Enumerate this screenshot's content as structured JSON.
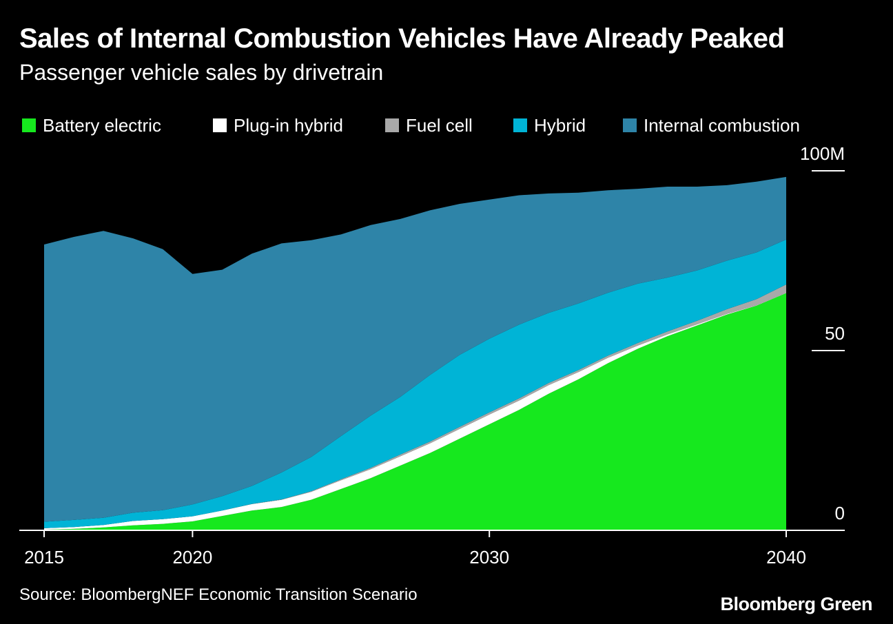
{
  "header": {
    "title": "Sales of Internal Combustion Vehicles Have Already Peaked",
    "subtitle": "Passenger vehicle sales by drivetrain"
  },
  "footer": {
    "source": "Source: BloombergNEF Economic Transition Scenario",
    "brand": "Bloomberg Green"
  },
  "chart_data": {
    "type": "area",
    "stacked": true,
    "title": "Sales of Internal Combustion Vehicles Have Already Peaked",
    "subtitle": "Passenger vehicle sales by drivetrain",
    "x": [
      2015,
      2016,
      2017,
      2018,
      2019,
      2020,
      2021,
      2022,
      2023,
      2024,
      2025,
      2026,
      2027,
      2028,
      2029,
      2030,
      2031,
      2032,
      2033,
      2034,
      2035,
      2036,
      2037,
      2038,
      2039,
      2040
    ],
    "x_ticks": [
      "2015",
      "2020",
      "2030",
      "2040"
    ],
    "x_tick_values": [
      2015,
      2020,
      2030,
      2040
    ],
    "y_ticks": [
      "0",
      "50",
      "100M"
    ],
    "y_tick_values": [
      0,
      50,
      100
    ],
    "ylim": [
      0,
      100
    ],
    "xlim": [
      2015,
      2040
    ],
    "legend_position": "top",
    "grid": false,
    "series": [
      {
        "name": "Battery electric",
        "color": "#16e81e",
        "values": [
          0.2,
          0.4,
          0.8,
          1.4,
          1.8,
          2.5,
          4.0,
          5.5,
          6.5,
          8.5,
          11.5,
          14.5,
          18.0,
          21.5,
          25.5,
          29.5,
          33.5,
          38.0,
          42.0,
          46.5,
          50.5,
          54.0,
          57.0,
          60.0,
          62.5,
          66.0
        ]
      },
      {
        "name": "Plug-in hybrid",
        "color": "#ffffff",
        "values": [
          0.4,
          0.5,
          0.7,
          1.2,
          1.3,
          1.4,
          1.5,
          1.8,
          2.0,
          2.2,
          2.4,
          2.5,
          2.6,
          2.7,
          2.7,
          2.7,
          2.6,
          2.4,
          2.0,
          1.5,
          0.9,
          0.5,
          0.3,
          0.2,
          0.1,
          0.1
        ]
      },
      {
        "name": "Fuel cell",
        "color": "#a9a9a9",
        "values": [
          0,
          0,
          0,
          0,
          0,
          0,
          0,
          0.05,
          0.1,
          0.2,
          0.3,
          0.4,
          0.5,
          0.5,
          0.6,
          0.6,
          0.6,
          0.6,
          0.6,
          0.6,
          0.7,
          0.8,
          1.0,
          1.3,
          1.7,
          2.3
        ]
      },
      {
        "name": "Hybrid",
        "color": "#00b4d6",
        "values": [
          1.8,
          2.0,
          2.0,
          2.3,
          2.5,
          3.3,
          4.0,
          5.0,
          7.5,
          9.5,
          12.0,
          14.5,
          16.0,
          18.5,
          20.0,
          20.5,
          20.5,
          19.5,
          18.5,
          17.5,
          16.5,
          15.0,
          14.0,
          13.5,
          13.0,
          12.5
        ]
      },
      {
        "name": "Internal combustion",
        "color": "#2e84a8",
        "values": [
          77.1,
          78.7,
          79.8,
          76.3,
          72.6,
          64.1,
          63.0,
          64.6,
          63.7,
          60.3,
          56.1,
          53.0,
          49.5,
          45.8,
          42.0,
          38.7,
          36.0,
          33.2,
          30.8,
          28.5,
          26.4,
          25.3,
          23.3,
          21.0,
          19.7,
          17.4
        ]
      }
    ]
  }
}
